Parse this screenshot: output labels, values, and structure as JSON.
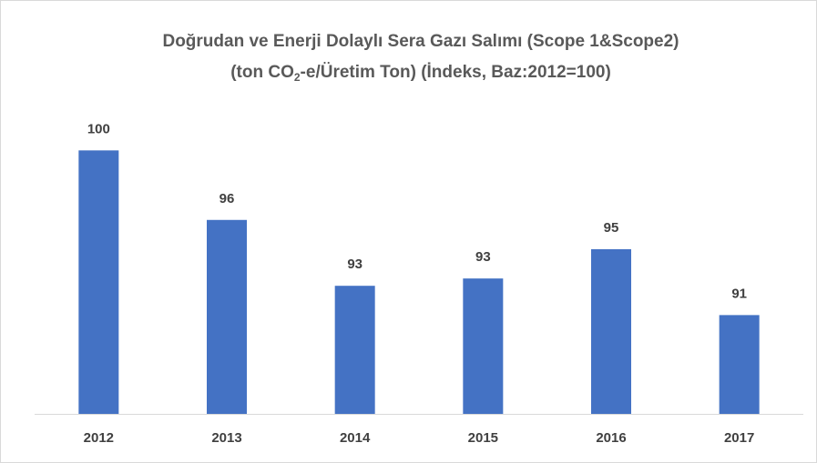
{
  "chart_data": {
    "type": "bar",
    "title": "Doğrudan ve Enerji Dolaylı Sera Gazı Salımı (Scope 1&Scope2)",
    "subtitle": [
      "(ton CO",
      "2",
      "-e/Üretim Ton)  (İndeks, Baz:2012=100)"
    ],
    "categories": [
      "2012",
      "2013",
      "2014",
      "2015",
      "2016",
      "2017"
    ],
    "values": [
      100,
      96.2,
      92.6,
      93.0,
      94.6,
      91.0
    ],
    "value_labels": [
      "100",
      "96",
      "93",
      "93",
      "95",
      "91"
    ],
    "color": "#4472c4",
    "ylim": [
      85.6,
      103
    ]
  }
}
